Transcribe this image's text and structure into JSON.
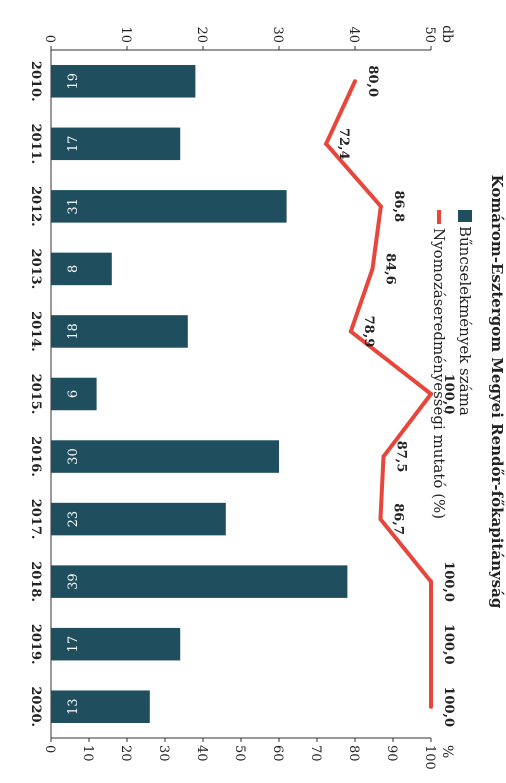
{
  "title": "Komárom-Esztergom Megyei Rendőr-főkapitányság",
  "chart_data": {
    "type": "bar",
    "categories": [
      "2010.",
      "2011.",
      "2012.",
      "2013.",
      "2014.",
      "2015.",
      "2016.",
      "2017.",
      "2018.",
      "2019.",
      "2020."
    ],
    "series": [
      {
        "name": "Bűncselekmények száma",
        "type": "bar",
        "axis": "left",
        "values": [
          19,
          17,
          31,
          8,
          18,
          6,
          30,
          23,
          39,
          17,
          13
        ]
      },
      {
        "name": "Nyomozáseredményességi mutató (%)",
        "type": "line",
        "axis": "right",
        "values": [
          80.0,
          72.4,
          86.8,
          84.6,
          78.9,
          100.0,
          87.5,
          86.7,
          100.0,
          100.0,
          100.0
        ],
        "labels": [
          "80,0",
          "72,4",
          "86,8",
          "84,6",
          "78,9",
          "100,0",
          "87,5",
          "86,7",
          "100,0",
          "100,0",
          "100,0"
        ]
      }
    ],
    "y_left": {
      "unit": "db",
      "ylim": [
        0,
        50
      ],
      "ticks": [
        "0",
        "10",
        "20",
        "30",
        "40",
        "50"
      ]
    },
    "y_right": {
      "unit": "%",
      "ylim": [
        0,
        100
      ],
      "ticks": [
        "0",
        "10",
        "20",
        "30",
        "40",
        "50",
        "60",
        "70",
        "80",
        "90",
        "100"
      ]
    },
    "legend_position": "top",
    "colors": {
      "bar": "#1f4e5f",
      "line": "#e8463a"
    },
    "grid": false
  }
}
